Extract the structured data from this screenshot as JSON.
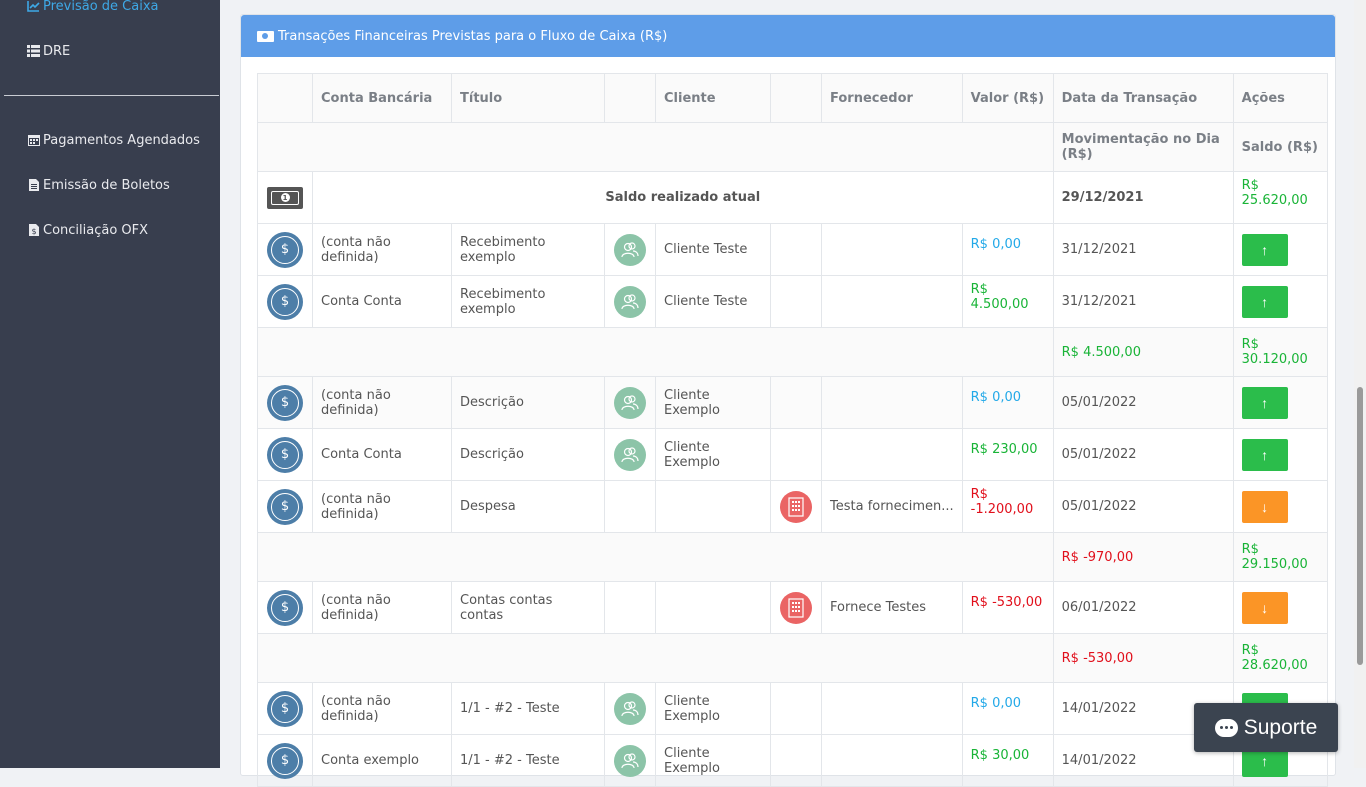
{
  "sidebar": {
    "items": [
      {
        "label": "Previsão de Caixa",
        "icon": "chart-line-icon"
      },
      {
        "label": "DRE",
        "icon": "list-icon"
      },
      {
        "label": "Pagamentos Agendados",
        "icon": "calendar-icon"
      },
      {
        "label": "Emissão de Boletos",
        "icon": "document-icon"
      },
      {
        "label": "Conciliação OFX",
        "icon": "file-dollar-icon"
      }
    ]
  },
  "panel": {
    "title": "Transações Financeiras Previstas para o Fluxo de Caixa (R$)"
  },
  "table": {
    "headers": {
      "conta": "Conta Bancária",
      "titulo": "Título",
      "cliente": "Cliente",
      "fornecedor": "Fornecedor",
      "valor": "Valor (R$)",
      "data": "Data da Transação",
      "acoes": "Ações",
      "mov": "Movimentação no Dia (R$)",
      "saldo": "Saldo (R$)"
    },
    "current_balance": {
      "label": "Saldo realizado atual",
      "date": "29/12/2021",
      "balance": "R$ 25.620,00"
    },
    "rows": [
      {
        "conta": "(conta não definida)",
        "titulo": "Recebimento exemplo",
        "cliente": "Cliente Teste",
        "fornecedor": "",
        "valor": "R$ 0,00",
        "data": "31/12/2021"
      },
      {
        "conta": "Conta Conta",
        "titulo": "Recebimento exemplo",
        "cliente": "Cliente Teste",
        "fornecedor": "",
        "valor": "R$ 4.500,00",
        "data": "31/12/2021"
      },
      {
        "conta": "(conta não definida)",
        "titulo": "Descrição",
        "cliente": "Cliente Exemplo",
        "fornecedor": "",
        "valor": "R$ 0,00",
        "data": "05/01/2022"
      },
      {
        "conta": "Conta Conta",
        "titulo": "Descrição",
        "cliente": "Cliente Exemplo",
        "fornecedor": "",
        "valor": "R$ 230,00",
        "data": "05/01/2022"
      },
      {
        "conta": "(conta não definida)",
        "titulo": "Despesa",
        "cliente": "",
        "fornecedor": "Testa fornecimen...",
        "valor": "R$ -1.200,00",
        "data": "05/01/2022"
      },
      {
        "conta": "(conta não definida)",
        "titulo": "Contas contas contas",
        "cliente": "",
        "fornecedor": "Fornece Testes",
        "valor": "R$ -530,00",
        "data": "06/01/2022"
      },
      {
        "conta": "(conta não definida)",
        "titulo": "1/1 - #2 - Teste",
        "cliente": "Cliente Exemplo",
        "fornecedor": "",
        "valor": "R$ 0,00",
        "data": "14/01/2022"
      },
      {
        "conta": "Conta exemplo",
        "titulo": "1/1 - #2 - Teste",
        "cliente": "Cliente Exemplo",
        "fornecedor": "",
        "valor": "R$ 30,00",
        "data": "14/01/2022"
      }
    ],
    "subtotals": [
      {
        "mov": "R$ 4.500,00",
        "saldo": "R$ 30.120,00"
      },
      {
        "mov": "R$ -970,00",
        "saldo": "R$ 29.150,00"
      },
      {
        "mov": "R$ -530,00",
        "saldo": "R$ 28.620,00"
      }
    ]
  },
  "support": {
    "label": "Suporte"
  },
  "colors": {
    "sidebar_bg": "#383e4e",
    "panel_header": "#5e9de8",
    "positive": "#19b437",
    "negative": "#e10f1b",
    "zero": "#23a9e8",
    "btn_up": "#2bbd4b",
    "btn_down": "#fb9526"
  }
}
